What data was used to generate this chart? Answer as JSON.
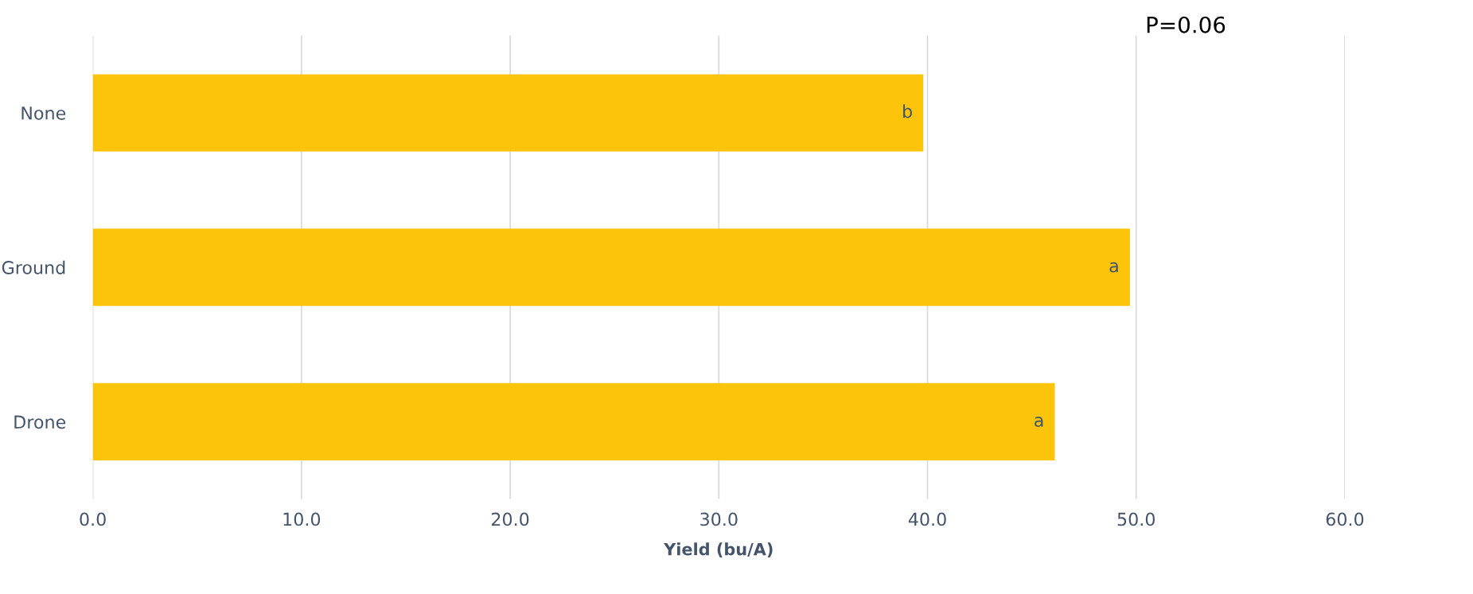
{
  "chart_data": {
    "type": "bar",
    "orientation": "horizontal",
    "xlabel": "Yield (bu/A)",
    "categories": [
      "None",
      "Ground",
      "Drone"
    ],
    "values": [
      39.8,
      49.7,
      46.1
    ],
    "value_labels": [
      "b",
      "a",
      "a"
    ],
    "color": "#fcc40a",
    "xlim": [
      0,
      60
    ],
    "xticks": [
      {
        "value": 0,
        "label": "0.0"
      },
      {
        "value": 10,
        "label": "10.0"
      },
      {
        "value": 20,
        "label": "20.0"
      },
      {
        "value": 30,
        "label": "30.0"
      },
      {
        "value": 40,
        "label": "40.0"
      },
      {
        "value": 50,
        "label": "50.0"
      },
      {
        "value": 60,
        "label": "60.0"
      }
    ],
    "grid": "x",
    "annotations": [
      "P=0.06"
    ]
  }
}
